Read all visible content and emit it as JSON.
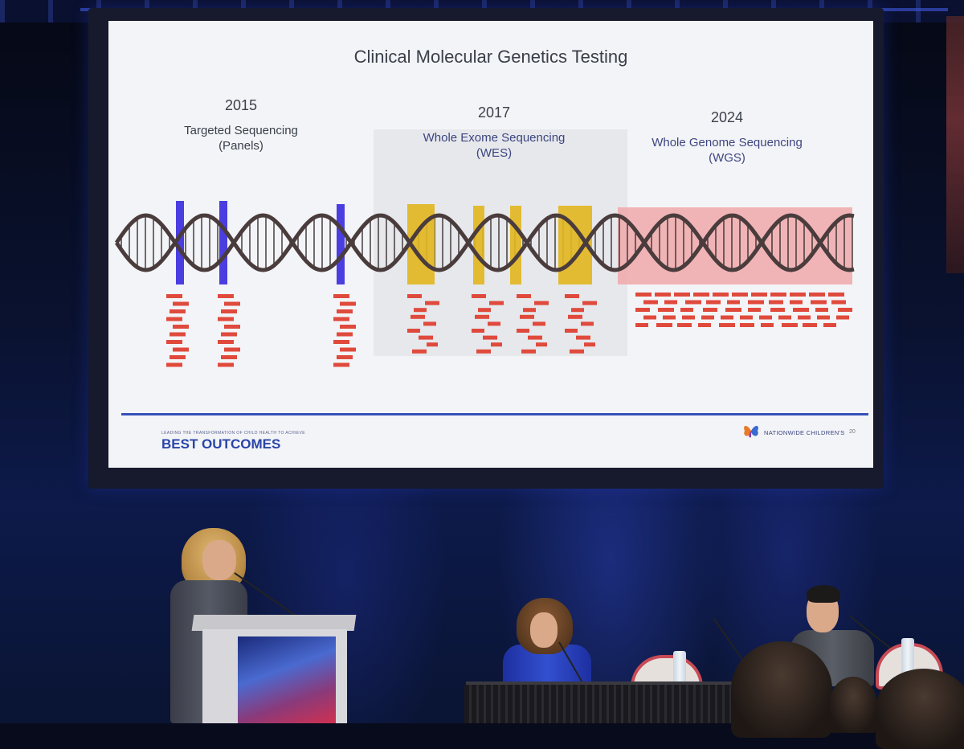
{
  "slide": {
    "title": "Clinical Molecular Genetics Testing",
    "eras": [
      {
        "year": "2015",
        "method": "Targeted Sequencing",
        "abbr": "(Panels)"
      },
      {
        "year": "2017",
        "method": "Whole Exome Sequencing",
        "abbr": "(WES)"
      },
      {
        "year": "2024",
        "method": "Whole Genome Sequencing",
        "abbr": "(WGS)"
      }
    ],
    "footer_tagline": "LEADING THE TRANSFORMATION OF CHILD HEALTH TO ACHIEVE",
    "footer_brand": "BEST OUTCOMES",
    "logo_text": "NATIONWIDE CHILDREN'S",
    "slide_number": "20"
  },
  "colors": {
    "targeted_marker": "#4a3ee0",
    "exome_marker": "#e2b623",
    "genome_highlight": "#f0a8aa",
    "read_fragment": "#e04a3c",
    "dna_strand": "#4a3c3c",
    "footer_line": "#3550b8"
  },
  "icons": {
    "logo": "butterfly-logo-icon"
  }
}
